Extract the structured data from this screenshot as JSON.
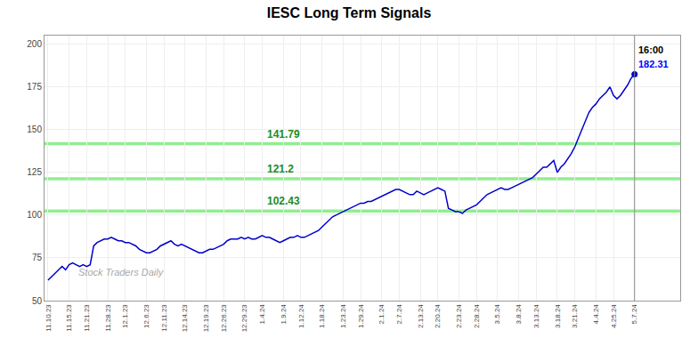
{
  "chart_data": {
    "type": "line",
    "title": "IESC Long Term Signals",
    "categories": [
      "11.10.23",
      null,
      null,
      null,
      null,
      null,
      "11.15.23",
      null,
      null,
      null,
      null,
      "11.21.23",
      null,
      null,
      null,
      null,
      null,
      "11.28.23",
      null,
      null,
      null,
      null,
      "12.1.23",
      null,
      null,
      null,
      null,
      null,
      "12.6.23",
      null,
      null,
      null,
      null,
      "12.11.23",
      null,
      null,
      null,
      null,
      null,
      "12.14.23",
      null,
      null,
      null,
      null,
      null,
      "12.19.23",
      null,
      null,
      null,
      null,
      "12.26.23",
      null,
      null,
      null,
      null,
      null,
      "12.29.23",
      null,
      null,
      null,
      null,
      "1.4.24",
      null,
      null,
      null,
      null,
      null,
      "1.9.24",
      null,
      null,
      null,
      null,
      "1.12.24",
      null,
      null,
      null,
      null,
      null,
      "1.18.24",
      null,
      null,
      null,
      null,
      null,
      "1.23.24",
      null,
      null,
      null,
      null,
      "1.29.24",
      null,
      null,
      null,
      null,
      null,
      "2.1.24",
      null,
      null,
      null,
      null,
      "2.7.24",
      null,
      null,
      null,
      null,
      null,
      "2.13.24",
      null,
      null,
      null,
      null,
      "2.20.24",
      null,
      null,
      null,
      null,
      null,
      "2.23.24",
      null,
      null,
      null,
      null,
      "2.28.24",
      null,
      null,
      null,
      null,
      null,
      "3.5.24",
      null,
      null,
      null,
      null,
      null,
      "3.8.24",
      null,
      null,
      null,
      null,
      "3.13.24",
      null,
      null,
      null,
      null,
      null,
      "3.18.24",
      null,
      null,
      null,
      null,
      "3.21.24",
      null,
      null,
      null,
      null,
      null,
      "4.4.24",
      null,
      null,
      null,
      null,
      "4.25.24",
      null,
      null,
      null,
      null,
      null,
      "5.7.24"
    ],
    "values": [
      62,
      64,
      66,
      68,
      70,
      68,
      71,
      72,
      71,
      70,
      71,
      70,
      71,
      82,
      84,
      85,
      86,
      86,
      87,
      86,
      85,
      85,
      84,
      84,
      83,
      82,
      80,
      79,
      78,
      78,
      79,
      80,
      82,
      83,
      84,
      85,
      83,
      82,
      83,
      82,
      81,
      80,
      79,
      78,
      78,
      79,
      80,
      80,
      81,
      82,
      83,
      85,
      86,
      86,
      86,
      87,
      86,
      87,
      86,
      86,
      87,
      88,
      87,
      87,
      86,
      85,
      84,
      85,
      86,
      87,
      87,
      88,
      87,
      87,
      88,
      89,
      90,
      91,
      93,
      95,
      97,
      99,
      100,
      101,
      102,
      103,
      104,
      105,
      106,
      107,
      107,
      108,
      108,
      109,
      110,
      111,
      112,
      113,
      114,
      115,
      115,
      114,
      113,
      112,
      112,
      114,
      113,
      112,
      113,
      114,
      115,
      116,
      115,
      114,
      104,
      103,
      102,
      102,
      101,
      103,
      104,
      105,
      106,
      108,
      110,
      112,
      113,
      114,
      115,
      116,
      115,
      115,
      116,
      117,
      118,
      119,
      120,
      121,
      122,
      124,
      126,
      128,
      128,
      130,
      132,
      125,
      128,
      130,
      133,
      136,
      140,
      145,
      150,
      155,
      160,
      163,
      165,
      168,
      170,
      172,
      175,
      170,
      168,
      170,
      173,
      176,
      180,
      182.31
    ],
    "color": "#0000cc",
    "ylim": [
      50,
      205
    ],
    "yticks": [
      50,
      75,
      100,
      125,
      150,
      175,
      200
    ],
    "grid": true,
    "hlines": [
      {
        "y": 102.43,
        "label": "102.43",
        "color": "#90EE90"
      },
      {
        "y": 121.2,
        "label": "121.2",
        "color": "#90EE90"
      },
      {
        "y": 141.79,
        "label": "141.79",
        "color": "#90EE90"
      }
    ],
    "annotations": [
      {
        "text": "16:00",
        "color": "#000000"
      },
      {
        "text": "182.31",
        "color": "#0000ff"
      }
    ],
    "watermark": "Stock Traders Daily"
  }
}
